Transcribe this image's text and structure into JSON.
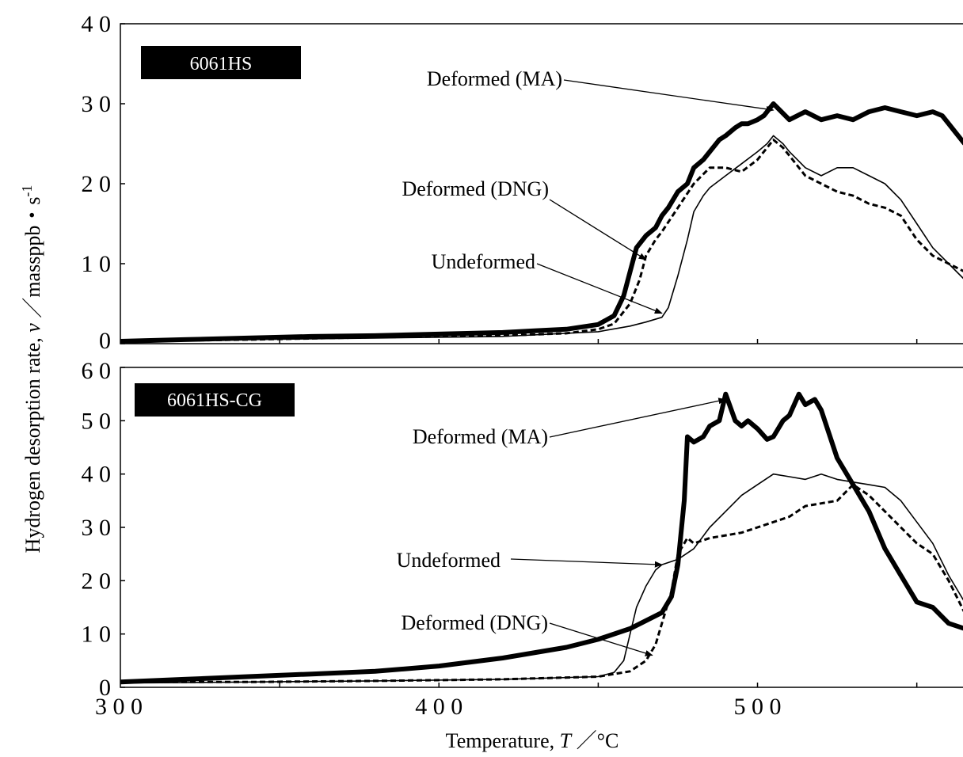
{
  "chart_data": [
    {
      "type": "line",
      "panel_label": "6061HS",
      "xlim": [
        300,
        565
      ],
      "ylim": [
        0,
        40
      ],
      "yticks": [
        "4 0",
        "3 0",
        "2 0",
        "1 0",
        "0"
      ],
      "series": [
        {
          "name": "Deformed (MA)",
          "style": "thick",
          "x": [
            300,
            320,
            340,
            360,
            380,
            400,
            420,
            430,
            440,
            450,
            455,
            458,
            460,
            462,
            465,
            468,
            470,
            472,
            475,
            478,
            480,
            483,
            485,
            488,
            490,
            493,
            495,
            497,
            500,
            502,
            505,
            510,
            515,
            520,
            525,
            530,
            535,
            540,
            545,
            550,
            555,
            558,
            560,
            562,
            565
          ],
          "y": [
            0.3,
            0.5,
            0.7,
            0.9,
            1.0,
            1.2,
            1.4,
            1.6,
            1.8,
            2.4,
            3.5,
            6.0,
            9.0,
            12.0,
            13.5,
            14.5,
            16.0,
            17.0,
            19.0,
            20.0,
            22.0,
            23.0,
            24.0,
            25.5,
            26.0,
            27.0,
            27.5,
            27.5,
            28.0,
            28.5,
            30.0,
            28.0,
            29.0,
            28.0,
            28.5,
            28.0,
            29.0,
            29.5,
            29.0,
            28.5,
            29.0,
            28.5,
            27.5,
            26.5,
            25.0
          ]
        },
        {
          "name": "Deformed (DNG)",
          "style": "dashed",
          "x": [
            300,
            340,
            380,
            420,
            440,
            450,
            455,
            460,
            463,
            465,
            468,
            470,
            475,
            480,
            485,
            490,
            495,
            500,
            503,
            505,
            508,
            510,
            515,
            520,
            525,
            530,
            535,
            540,
            545,
            550,
            555,
            560,
            565
          ],
          "y": [
            0.3,
            0.5,
            0.8,
            1.0,
            1.3,
            1.8,
            2.5,
            5.0,
            8.0,
            11.0,
            13.0,
            14.0,
            17.0,
            20.0,
            22.0,
            22.0,
            21.5,
            23.0,
            24.5,
            25.5,
            24.5,
            23.5,
            21.0,
            20.0,
            19.0,
            18.5,
            17.5,
            17.0,
            16.0,
            13.0,
            11.0,
            10.0,
            9.0
          ]
        },
        {
          "name": "Undeformed",
          "style": "thin",
          "x": [
            300,
            340,
            380,
            420,
            450,
            460,
            465,
            470,
            472,
            475,
            478,
            480,
            483,
            485,
            490,
            495,
            500,
            503,
            505,
            508,
            510,
            515,
            520,
            525,
            530,
            535,
            540,
            545,
            550,
            555,
            560,
            565
          ],
          "y": [
            0.3,
            0.5,
            0.7,
            0.9,
            1.5,
            2.2,
            2.7,
            3.3,
            4.5,
            8.5,
            13.0,
            16.5,
            18.5,
            19.5,
            21.0,
            22.5,
            24.0,
            25.0,
            26.0,
            25.0,
            24.0,
            22.0,
            21.0,
            22.0,
            22.0,
            21.0,
            20.0,
            18.0,
            15.0,
            12.0,
            10.0,
            8.0
          ]
        }
      ],
      "annotations": [
        {
          "text": "Deformed (MA)",
          "target_series": "Deformed (MA)",
          "target_x": 505,
          "target_y": 29.2
        },
        {
          "text": "Deformed (DNG)",
          "target_series": "Deformed (DNG)",
          "target_x": 465,
          "target_y": 10.5
        },
        {
          "text": "Undeformed",
          "target_series": "Undeformed",
          "target_x": 470,
          "target_y": 3.8
        }
      ]
    },
    {
      "type": "line",
      "panel_label": "6061HS-CG",
      "xlim": [
        300,
        565
      ],
      "ylim": [
        0,
        60
      ],
      "yticks": [
        "6 0",
        "5 0",
        "4 0",
        "3 0",
        "2 0",
        "1 0",
        "0"
      ],
      "series": [
        {
          "name": "Deformed (MA)",
          "style": "thick",
          "x": [
            300,
            320,
            340,
            360,
            380,
            400,
            420,
            440,
            450,
            460,
            470,
            473,
            475,
            477,
            478,
            480,
            483,
            485,
            488,
            490,
            493,
            495,
            497,
            500,
            503,
            505,
            508,
            510,
            513,
            515,
            518,
            520,
            525,
            530,
            535,
            540,
            545,
            550,
            555,
            560,
            565
          ],
          "y": [
            1.0,
            1.5,
            2.0,
            2.5,
            3.0,
            4.0,
            5.5,
            7.5,
            9.0,
            11.0,
            14.0,
            17.0,
            23.0,
            35.0,
            47.0,
            46.0,
            47.0,
            49.0,
            50.0,
            55.0,
            50.0,
            49.0,
            50.0,
            48.5,
            46.5,
            47.0,
            50.0,
            51.0,
            55.0,
            53.0,
            54.0,
            52.0,
            43.0,
            38.0,
            33.0,
            26.0,
            21.0,
            16.0,
            15.0,
            12.0,
            11.0
          ]
        },
        {
          "name": "Deformed (DNG)",
          "style": "dashed",
          "x": [
            300,
            340,
            380,
            420,
            450,
            460,
            465,
            468,
            470,
            473,
            475,
            478,
            480,
            485,
            490,
            495,
            500,
            505,
            510,
            515,
            520,
            525,
            530,
            535,
            540,
            545,
            550,
            555,
            560,
            565
          ],
          "y": [
            1.0,
            1.0,
            1.2,
            1.5,
            2.0,
            3.0,
            5.0,
            8.0,
            12.0,
            18.0,
            25.0,
            28.0,
            27.0,
            28.0,
            28.5,
            29.0,
            30.0,
            31.0,
            32.0,
            34.0,
            34.5,
            35.0,
            38.0,
            36.0,
            33.0,
            30.0,
            27.0,
            25.0,
            20.0,
            14.0
          ]
        },
        {
          "name": "Undeformed",
          "style": "thin",
          "x": [
            300,
            340,
            380,
            420,
            450,
            455,
            458,
            460,
            462,
            465,
            468,
            470,
            475,
            480,
            485,
            490,
            495,
            500,
            505,
            510,
            515,
            520,
            525,
            530,
            535,
            540,
            545,
            550,
            555,
            560,
            565
          ],
          "y": [
            0.8,
            1.0,
            1.2,
            1.5,
            2.0,
            2.8,
            5.0,
            10.0,
            15.0,
            19.0,
            22.0,
            23.0,
            24.0,
            26.0,
            30.0,
            33.0,
            36.0,
            38.0,
            40.0,
            39.5,
            39.0,
            40.0,
            39.0,
            38.5,
            38.0,
            37.5,
            35.0,
            31.0,
            27.0,
            21.0,
            16.0
          ]
        }
      ],
      "annotations": [
        {
          "text": "Deformed (MA)",
          "target_series": "Deformed (MA)",
          "target_x": 490,
          "target_y": 54.0
        },
        {
          "text": "Undeformed",
          "target_series": "Undeformed",
          "target_x": 470,
          "target_y": 23.0
        },
        {
          "text": "Deformed (DNG)",
          "target_series": "Deformed (DNG)",
          "target_x": 467,
          "target_y": 6.0
        }
      ]
    }
  ],
  "x_axis": {
    "ticks": [
      300,
      400,
      500
    ],
    "tick_labels": [
      "3 0 0",
      "4 0 0",
      "5 0 0"
    ],
    "label_text": "Temperature, ",
    "label_symbol": "T",
    "label_unit": " ／°C"
  },
  "y_axis": {
    "label_text": "Hydrogen desorption rate, ",
    "label_symbol": "v",
    "label_unit": " ／massppb・s",
    "label_exponent": "-1"
  }
}
